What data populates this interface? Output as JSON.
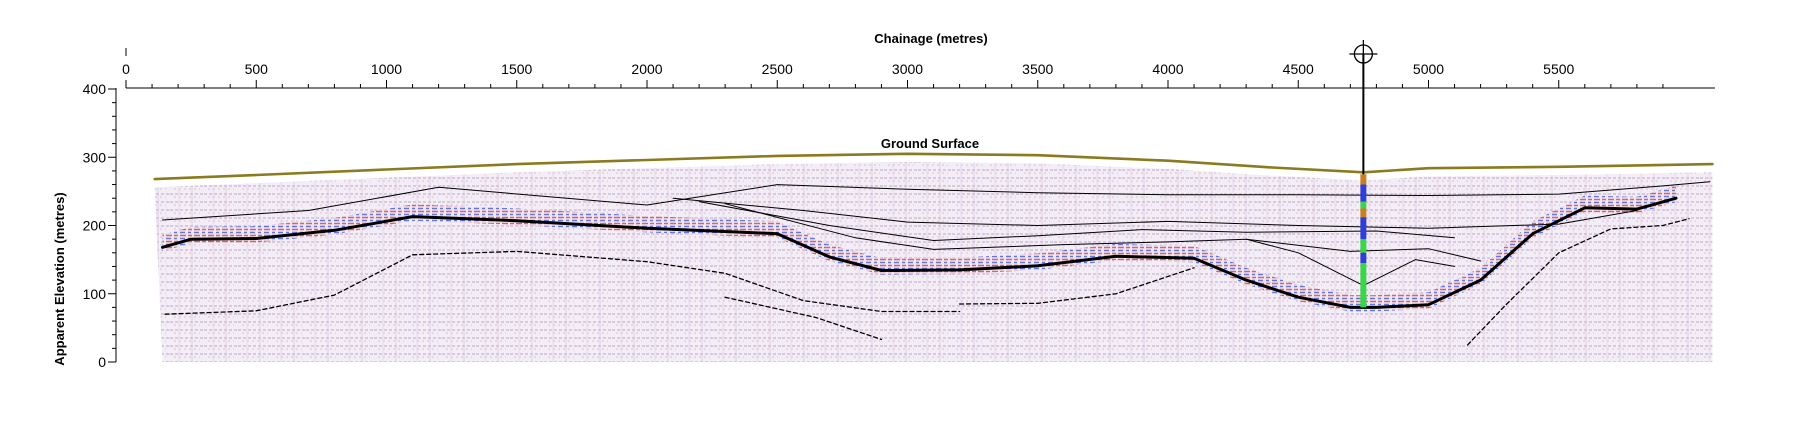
{
  "figure": {
    "top_axis_title": "Chainage (metres)",
    "left_axis_title": "Apparent Elevation (metres)",
    "ground_label": "Ground Surface",
    "x_ticks": [
      "0",
      "500",
      "1000",
      "1500",
      "2000",
      "2500",
      "3000",
      "3500",
      "4000",
      "4500",
      "5000",
      "5500"
    ],
    "y_ticks": [
      "400",
      "300",
      "200",
      "100",
      "0"
    ],
    "borehole_marker": "crosshair-symbol"
  },
  "chart_data": {
    "type": "line",
    "xlabel": "Chainage (metres)",
    "ylabel": "Apparent Elevation (metres)",
    "xlim": [
      0,
      6100
    ],
    "ylim": [
      0,
      400
    ],
    "grid": false,
    "colors": {
      "ground": "#8b7a1e",
      "reflector": "#000000",
      "radar_red": "#d43a3a",
      "radar_blue": "#3a5ad6",
      "borehole_orange": "#c8801e",
      "borehole_blue": "#2f3fd6",
      "borehole_green": "#3ad64a"
    },
    "series": [
      {
        "name": "Ground Surface",
        "x": [
          110,
          500,
          1000,
          1500,
          2000,
          2500,
          3000,
          3500,
          4000,
          4400,
          4750,
          5000,
          5500,
          6090
        ],
        "y": [
          268,
          274,
          282,
          290,
          296,
          302,
          305,
          303,
          295,
          285,
          278,
          284,
          286,
          290
        ]
      },
      {
        "x": [
          140,
          250,
          500,
          800,
          1100,
          1500,
          2000,
          2500,
          2700,
          2900,
          3200,
          3500,
          3800,
          4100,
          4300,
          4500,
          4700,
          4800,
          5000,
          5200,
          5400,
          5600,
          5800,
          5950
        ],
        "y": [
          168,
          180,
          181,
          193,
          213,
          207,
          196,
          188,
          154,
          134,
          135,
          141,
          155,
          152,
          120,
          95,
          80,
          80,
          84,
          120,
          188,
          226,
          224,
          240
        ]
      },
      {
        "x": [
          150,
          500,
          800,
          1100,
          1500,
          2000,
          2300,
          2600,
          2900,
          3200
        ],
        "y": [
          70,
          75,
          98,
          157,
          162,
          147,
          130,
          90,
          74,
          74
        ]
      },
      {
        "x": [
          2300,
          2650,
          2900
        ],
        "y": [
          95,
          65,
          33
        ]
      },
      {
        "x": [
          3200,
          3500,
          3800,
          4100
        ],
        "y": [
          85,
          86,
          100,
          138
        ]
      },
      {
        "x": [
          5150,
          5300,
          5500,
          5700,
          5900,
          6000
        ],
        "y": [
          25,
          85,
          160,
          195,
          200,
          210
        ]
      },
      {
        "x": [
          140,
          700,
          1200,
          2000,
          2500,
          3000,
          3500,
          4000,
          4500,
          5000,
          5500,
          5900,
          6080
        ],
        "y": [
          208,
          222,
          256,
          230,
          260,
          253,
          248,
          245,
          245,
          244,
          246,
          258,
          264
        ]
      },
      {
        "x": [
          2100,
          2600,
          3000,
          3500,
          4000,
          4500,
          5000,
          5500,
          5800
        ],
        "y": [
          240,
          222,
          205,
          200,
          206,
          200,
          196,
          202,
          222
        ]
      },
      {
        "x": [
          2200,
          2700,
          3100,
          3500,
          3900,
          4300,
          4800,
          5100
        ],
        "y": [
          235,
          200,
          178,
          185,
          194,
          190,
          192,
          182
        ]
      },
      {
        "x": [
          2300,
          2800,
          3100,
          3600,
          4000,
          4300,
          4700,
          5000,
          5200
        ],
        "y": [
          232,
          182,
          165,
          172,
          176,
          180,
          162,
          166,
          148
        ]
      },
      {
        "x": [
          4300,
          4500,
          4750,
          4950,
          5100
        ],
        "y": [
          180,
          160,
          112,
          150,
          140
        ]
      }
    ]
  }
}
